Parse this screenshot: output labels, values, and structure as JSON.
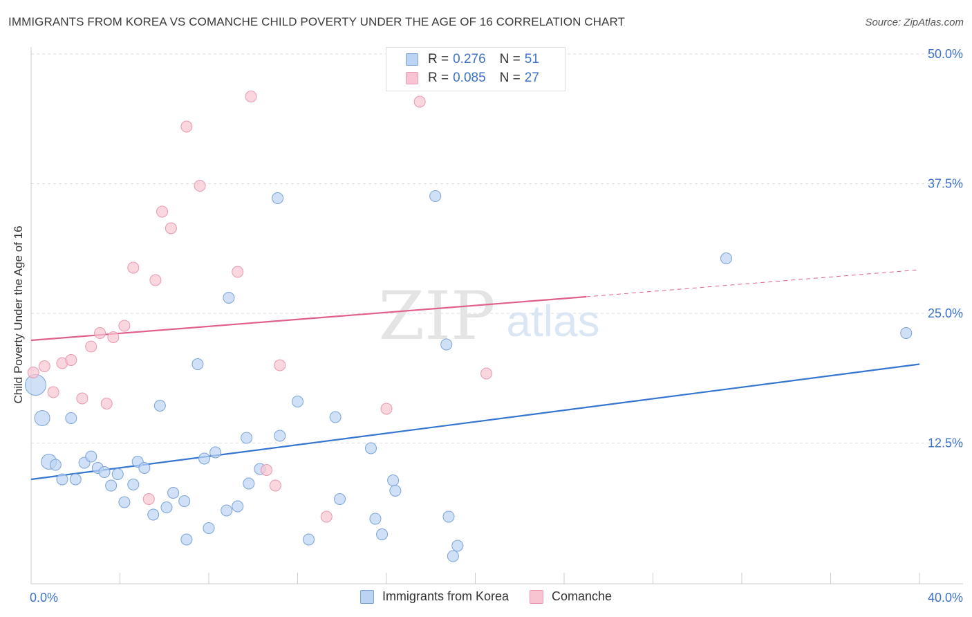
{
  "title": "IMMIGRANTS FROM KOREA VS COMANCHE CHILD POVERTY UNDER THE AGE OF 16 CORRELATION CHART",
  "source": "Source: ZipAtlas.com",
  "watermark": {
    "zip": "ZIP",
    "atlas": "atlas"
  },
  "legend": {
    "rows": [
      {
        "r_label": "R =",
        "r_value": "0.276",
        "n_label": "N =",
        "n_value": "51"
      },
      {
        "r_label": "R =",
        "r_value": "0.085",
        "n_label": "N =",
        "n_value": "27"
      }
    ]
  },
  "colors": {
    "blue_fill": "#bcd4f4",
    "blue_stroke": "#7aa3d8",
    "blue_line": "#3375d0",
    "pink_fill": "#f8c4d2",
    "pink_stroke": "#e898b0",
    "pink_line": "#e0608a",
    "axis_text": "#3b72c9",
    "grid": "#dddddd"
  },
  "chart_data": {
    "type": "scatter",
    "title": "IMMIGRANTS FROM KOREA VS COMANCHE CHILD POVERTY UNDER THE AGE OF 16 CORRELATION CHART",
    "xlabel": "",
    "ylabel": "Child Poverty Under the Age of 16",
    "xlim": [
      0,
      40
    ],
    "ylim": [
      0,
      50
    ],
    "x_tick_labels": [
      {
        "value": 0,
        "label": "0.0%"
      },
      {
        "value": 40,
        "label": "40.0%"
      }
    ],
    "y_tick_labels": [
      {
        "value": 12.5,
        "label": "12.5%"
      },
      {
        "value": 25,
        "label": "25.0%"
      },
      {
        "value": 37.5,
        "label": "37.5%"
      },
      {
        "value": 50,
        "label": "50.0%"
      }
    ],
    "grid": true,
    "legend_position": "top-center",
    "series": [
      {
        "name": "Immigrants from Korea",
        "color": "#bcd4f4",
        "points": [
          {
            "x": 0.2,
            "y": 18.1,
            "s": 3
          },
          {
            "x": 0.5,
            "y": 14.9,
            "s": 2
          },
          {
            "x": 0.8,
            "y": 10.7,
            "s": 2
          },
          {
            "x": 1.1,
            "y": 10.4,
            "s": 1
          },
          {
            "x": 1.4,
            "y": 9.0,
            "s": 1
          },
          {
            "x": 1.8,
            "y": 14.9,
            "s": 1
          },
          {
            "x": 2.0,
            "y": 9.0,
            "s": 1
          },
          {
            "x": 2.4,
            "y": 10.6,
            "s": 1
          },
          {
            "x": 2.7,
            "y": 11.2,
            "s": 1
          },
          {
            "x": 3.0,
            "y": 10.1,
            "s": 1
          },
          {
            "x": 3.3,
            "y": 9.7,
            "s": 1
          },
          {
            "x": 3.6,
            "y": 8.4,
            "s": 1
          },
          {
            "x": 3.9,
            "y": 9.5,
            "s": 1
          },
          {
            "x": 4.2,
            "y": 6.8,
            "s": 1
          },
          {
            "x": 4.6,
            "y": 8.5,
            "s": 1
          },
          {
            "x": 4.8,
            "y": 10.7,
            "s": 1
          },
          {
            "x": 5.1,
            "y": 10.1,
            "s": 1
          },
          {
            "x": 5.5,
            "y": 5.6,
            "s": 1
          },
          {
            "x": 5.8,
            "y": 16.1,
            "s": 1
          },
          {
            "x": 6.1,
            "y": 6.3,
            "s": 1
          },
          {
            "x": 6.4,
            "y": 7.7,
            "s": 1
          },
          {
            "x": 6.9,
            "y": 6.9,
            "s": 1
          },
          {
            "x": 7.0,
            "y": 3.2,
            "s": 1
          },
          {
            "x": 7.5,
            "y": 20.1,
            "s": 1
          },
          {
            "x": 7.8,
            "y": 11.0,
            "s": 1
          },
          {
            "x": 8.0,
            "y": 4.3,
            "s": 1
          },
          {
            "x": 8.3,
            "y": 11.6,
            "s": 1
          },
          {
            "x": 8.8,
            "y": 6.0,
            "s": 1
          },
          {
            "x": 8.9,
            "y": 26.5,
            "s": 1
          },
          {
            "x": 9.3,
            "y": 6.4,
            "s": 1
          },
          {
            "x": 9.7,
            "y": 13.0,
            "s": 1
          },
          {
            "x": 9.8,
            "y": 8.6,
            "s": 1
          },
          {
            "x": 10.3,
            "y": 10.0,
            "s": 1
          },
          {
            "x": 11.1,
            "y": 36.1,
            "s": 1
          },
          {
            "x": 11.2,
            "y": 13.2,
            "s": 1
          },
          {
            "x": 12.0,
            "y": 16.5,
            "s": 1
          },
          {
            "x": 12.5,
            "y": 3.2,
            "s": 1
          },
          {
            "x": 13.7,
            "y": 15.0,
            "s": 1
          },
          {
            "x": 13.9,
            "y": 7.1,
            "s": 1
          },
          {
            "x": 15.3,
            "y": 12.0,
            "s": 1
          },
          {
            "x": 15.5,
            "y": 5.2,
            "s": 1
          },
          {
            "x": 15.8,
            "y": 3.7,
            "s": 1
          },
          {
            "x": 16.3,
            "y": 8.9,
            "s": 1
          },
          {
            "x": 16.4,
            "y": 7.9,
            "s": 1
          },
          {
            "x": 18.2,
            "y": 36.3,
            "s": 1
          },
          {
            "x": 18.7,
            "y": 22.0,
            "s": 1
          },
          {
            "x": 18.8,
            "y": 5.4,
            "s": 1
          },
          {
            "x": 19.0,
            "y": 1.6,
            "s": 1
          },
          {
            "x": 19.2,
            "y": 2.6,
            "s": 1
          },
          {
            "x": 31.3,
            "y": 30.3,
            "s": 1
          },
          {
            "x": 39.4,
            "y": 23.1,
            "s": 1
          }
        ]
      },
      {
        "name": "Comanche",
        "color": "#f8c4d2",
        "points": [
          {
            "x": 0.1,
            "y": 19.3
          },
          {
            "x": 0.6,
            "y": 19.9
          },
          {
            "x": 1.0,
            "y": 17.4
          },
          {
            "x": 1.4,
            "y": 20.2
          },
          {
            "x": 1.8,
            "y": 20.5
          },
          {
            "x": 2.3,
            "y": 16.8
          },
          {
            "x": 2.7,
            "y": 21.8
          },
          {
            "x": 3.1,
            "y": 23.1
          },
          {
            "x": 3.4,
            "y": 16.3
          },
          {
            "x": 3.7,
            "y": 22.7
          },
          {
            "x": 4.2,
            "y": 23.8
          },
          {
            "x": 4.6,
            "y": 29.4
          },
          {
            "x": 5.3,
            "y": 7.1
          },
          {
            "x": 5.6,
            "y": 28.2
          },
          {
            "x": 5.9,
            "y": 34.8
          },
          {
            "x": 6.3,
            "y": 33.2
          },
          {
            "x": 7.0,
            "y": 43.0
          },
          {
            "x": 7.6,
            "y": 37.3
          },
          {
            "x": 9.3,
            "y": 29.0
          },
          {
            "x": 9.9,
            "y": 45.9
          },
          {
            "x": 10.6,
            "y": 9.9
          },
          {
            "x": 11.0,
            "y": 8.4
          },
          {
            "x": 11.2,
            "y": 20.0
          },
          {
            "x": 13.3,
            "y": 5.4
          },
          {
            "x": 16.0,
            "y": 15.8
          },
          {
            "x": 17.5,
            "y": 45.4
          },
          {
            "x": 20.5,
            "y": 19.2
          }
        ]
      }
    ],
    "trendlines": [
      {
        "series": "Immigrants from Korea",
        "x": [
          0,
          40
        ],
        "y": [
          9.0,
          20.1
        ],
        "style": "solid"
      },
      {
        "series": "Comanche",
        "x": [
          0,
          25
        ],
        "y": [
          22.4,
          26.6
        ],
        "style": "solid"
      },
      {
        "series": "Comanche",
        "x": [
          25,
          40
        ],
        "y": [
          26.6,
          29.2
        ],
        "style": "dashed"
      }
    ]
  }
}
